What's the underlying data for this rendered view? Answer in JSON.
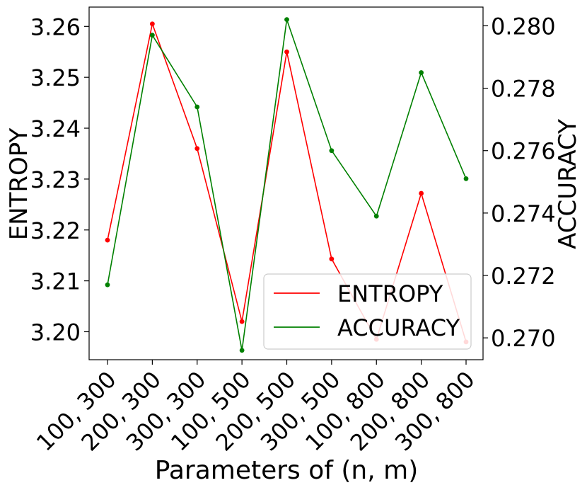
{
  "chart_data": {
    "type": "line",
    "xlabel": "Parameters of (n, m)",
    "categories": [
      "100, 300",
      "200, 300",
      "300, 300",
      "100, 500",
      "200, 500",
      "300, 500",
      "100, 800",
      "200, 800",
      "300, 800"
    ],
    "y_left": {
      "label": "ENTROPY",
      "ylim": [
        3.1945,
        3.2638
      ],
      "ticks": [
        "3.20",
        "3.21",
        "3.22",
        "3.23",
        "3.24",
        "3.25",
        "3.26"
      ]
    },
    "y_right": {
      "label": "ACCURACY",
      "ylim": [
        0.2693,
        0.2806
      ],
      "ticks": [
        "0.270",
        "0.272",
        "0.274",
        "0.276",
        "0.278",
        "0.280"
      ]
    },
    "series": [
      {
        "name": "ENTROPY",
        "axis": "left",
        "color": "#ff0000",
        "values": [
          3.218,
          3.2605,
          3.236,
          3.202,
          3.255,
          3.2143,
          3.1985,
          3.2272,
          3.198
        ]
      },
      {
        "name": "ACCURACY",
        "axis": "right",
        "color": "#008000",
        "values": [
          0.2717,
          0.2797,
          0.2774,
          0.2696,
          0.2802,
          0.276,
          0.2739,
          0.2785,
          0.2751
        ]
      }
    ],
    "grid": false,
    "legend": {
      "position": "lower-right",
      "entries": [
        "ENTROPY",
        "ACCURACY"
      ]
    }
  }
}
